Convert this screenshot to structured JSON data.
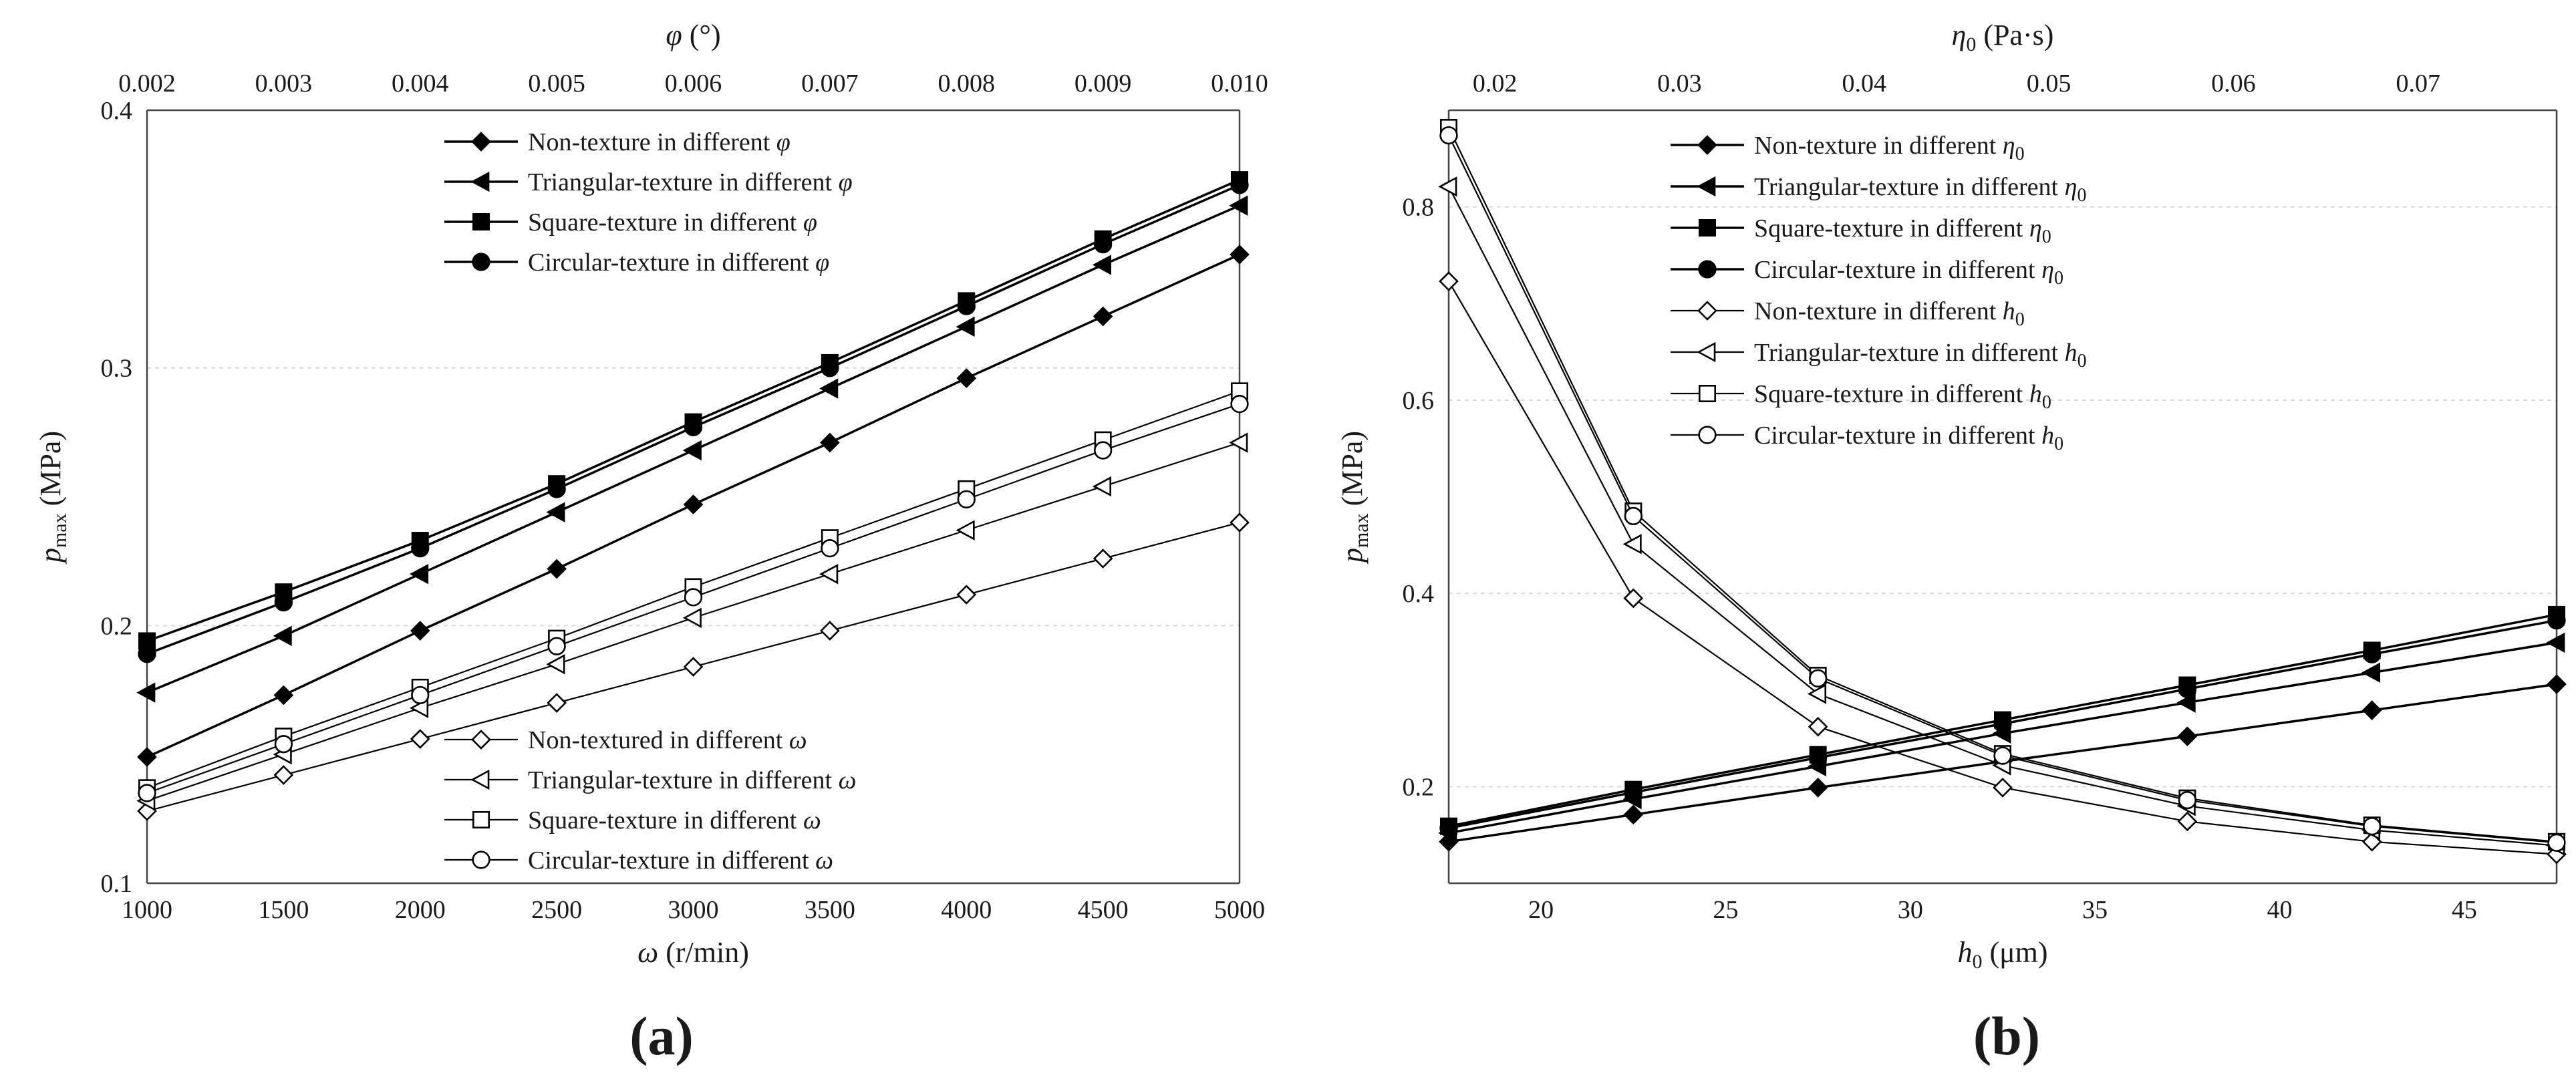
{
  "figure": {
    "panel_labels": [
      "(a)",
      "(b)"
    ]
  },
  "chart_data": [
    {
      "type": "line",
      "panel": "(a)",
      "x": [
        1000,
        1500,
        2000,
        2500,
        3000,
        3500,
        4000,
        4500,
        5000
      ],
      "xlim": [
        1000,
        5000
      ],
      "xticks": [
        "1000",
        "1500",
        "2000",
        "2500",
        "3000",
        "3500",
        "4000",
        "4500",
        "5000"
      ],
      "xlabel": {
        "sym": "ω",
        "sub": "",
        "unit": " (r/min)"
      },
      "x2": [
        0.002,
        0.003,
        0.004,
        0.005,
        0.006,
        0.007,
        0.008,
        0.009,
        0.01
      ],
      "x2lim": [
        0.002,
        0.01
      ],
      "x2ticks": [
        "0.002",
        "0.003",
        "0.004",
        "0.005",
        "0.006",
        "0.007",
        "0.008",
        "0.009",
        "0.010"
      ],
      "x2label": {
        "sym": "φ",
        "sub": "",
        "unit": " (°)"
      },
      "ylim": [
        0.1,
        0.4
      ],
      "yticks": [
        "0.1",
        "0.2",
        "0.3",
        "0.4"
      ],
      "yticks_values": [
        0.1,
        0.2,
        0.3,
        0.4
      ],
      "ylabel": {
        "sym": "p",
        "sub": "max",
        "unit": " (MPa)"
      },
      "grid": true,
      "series": [
        {
          "name": "Non-texture in different ",
          "var": "φ",
          "var_sub": "",
          "marker": "diamond",
          "filled": true,
          "axis": "x2",
          "values": [
            0.149,
            0.173,
            0.198,
            0.222,
            0.247,
            0.271,
            0.296,
            0.32,
            0.344
          ]
        },
        {
          "name": "Triangular-texture in different ",
          "var": "φ",
          "var_sub": "",
          "marker": "triangle-left",
          "filled": true,
          "axis": "x2",
          "values": [
            0.174,
            0.196,
            0.22,
            0.244,
            0.268,
            0.292,
            0.316,
            0.34,
            0.363
          ]
        },
        {
          "name": "Square-texture in different ",
          "var": "φ",
          "var_sub": "",
          "marker": "square",
          "filled": true,
          "axis": "x2",
          "values": [
            0.194,
            0.213,
            0.233,
            0.255,
            0.279,
            0.302,
            0.326,
            0.35,
            0.373
          ]
        },
        {
          "name": "Circular-texture in different ",
          "var": "φ",
          "var_sub": "",
          "marker": "circle",
          "filled": true,
          "axis": "x2",
          "values": [
            0.189,
            0.209,
            0.23,
            0.253,
            0.277,
            0.3,
            0.324,
            0.348,
            0.371
          ]
        },
        {
          "name": "Non-textured in different ",
          "var": "ω",
          "var_sub": "",
          "marker": "diamond",
          "filled": false,
          "axis": "x",
          "values": [
            0.128,
            0.142,
            0.156,
            0.17,
            0.184,
            0.198,
            0.212,
            0.226,
            0.24
          ]
        },
        {
          "name": "Triangular-texture in different ",
          "var": "ω",
          "var_sub": "",
          "marker": "triangle-left",
          "filled": false,
          "axis": "x",
          "values": [
            0.132,
            0.15,
            0.168,
            0.185,
            0.203,
            0.22,
            0.237,
            0.254,
            0.271
          ]
        },
        {
          "name": "Square-texture in different ",
          "var": "ω",
          "var_sub": "",
          "marker": "square",
          "filled": false,
          "axis": "x",
          "values": [
            0.137,
            0.157,
            0.176,
            0.195,
            0.215,
            0.234,
            0.253,
            0.272,
            0.291
          ]
        },
        {
          "name": "Circular-texture in different ",
          "var": "ω",
          "var_sub": "",
          "marker": "circle",
          "filled": false,
          "axis": "x",
          "values": [
            0.135,
            0.154,
            0.173,
            0.192,
            0.211,
            0.23,
            0.249,
            0.268,
            0.286
          ]
        }
      ],
      "legend_groups": [
        {
          "placement": "top-center",
          "series": [
            0,
            1,
            2,
            3
          ]
        },
        {
          "placement": "bottom-center",
          "series": [
            4,
            5,
            6,
            7
          ]
        }
      ]
    },
    {
      "type": "line",
      "panel": "(b)",
      "x": [
        17.5,
        22.5,
        27.5,
        32.5,
        37.5,
        42.5,
        47.5
      ],
      "xlim": [
        17.5,
        47.5
      ],
      "xticks": [
        "20",
        "25",
        "30",
        "35",
        "40",
        "45"
      ],
      "xticks_values": [
        20,
        25,
        30,
        35,
        40,
        45
      ],
      "xlabel": {
        "sym": "h",
        "sub": "0",
        "unit": " (μm)"
      },
      "x2": [
        0.0175,
        0.0275,
        0.0375,
        0.0475,
        0.0575,
        0.0675,
        0.0775
      ],
      "x2lim": [
        0.0175,
        0.0775
      ],
      "x2ticks": [
        "0.02",
        "0.03",
        "0.04",
        "0.05",
        "0.06",
        "0.07"
      ],
      "x2ticks_values": [
        0.02,
        0.03,
        0.04,
        0.05,
        0.06,
        0.07
      ],
      "x2label": {
        "sym": "η",
        "sub": "0",
        "unit": " (Pa·s)"
      },
      "ylim": [
        0.1,
        0.9
      ],
      "yticks": [
        "0.2",
        "0.4",
        "0.6",
        "0.8"
      ],
      "yticks_values": [
        0.2,
        0.4,
        0.6,
        0.8
      ],
      "ylabel": {
        "sym": "p",
        "sub": "max",
        "unit": " (MPa)"
      },
      "grid": true,
      "series": [
        {
          "name": "Non-texture in different ",
          "var": "η",
          "var_sub": "0",
          "marker": "diamond",
          "filled": true,
          "axis": "x2",
          "values": [
            0.143,
            0.171,
            0.199,
            0.226,
            0.252,
            0.279,
            0.306
          ]
        },
        {
          "name": "Triangular-texture in different ",
          "var": "η",
          "var_sub": "0",
          "marker": "triangle-left",
          "filled": true,
          "axis": "x2",
          "values": [
            0.152,
            0.187,
            0.221,
            0.255,
            0.287,
            0.318,
            0.349
          ]
        },
        {
          "name": "Square-texture in different ",
          "var": "η",
          "var_sub": "0",
          "marker": "square",
          "filled": true,
          "axis": "x2",
          "values": [
            0.159,
            0.197,
            0.233,
            0.269,
            0.305,
            0.341,
            0.378
          ]
        },
        {
          "name": "Circular-texture in different ",
          "var": "η",
          "var_sub": "0",
          "marker": "circle",
          "filled": true,
          "axis": "x2",
          "values": [
            0.157,
            0.194,
            0.23,
            0.265,
            0.301,
            0.337,
            0.372
          ]
        },
        {
          "name": "Non-texture in different ",
          "var": "h",
          "var_sub": "0",
          "marker": "diamond",
          "filled": false,
          "axis": "x",
          "values": [
            0.723,
            0.395,
            0.262,
            0.199,
            0.164,
            0.143,
            0.13
          ]
        },
        {
          "name": "Triangular-texture in different ",
          "var": "h",
          "var_sub": "0",
          "marker": "triangle-left",
          "filled": false,
          "axis": "x",
          "values": [
            0.821,
            0.451,
            0.296,
            0.222,
            0.18,
            0.155,
            0.139
          ]
        },
        {
          "name": "Square-texture in different ",
          "var": "h",
          "var_sub": "0",
          "marker": "square",
          "filled": false,
          "axis": "x",
          "values": [
            0.882,
            0.485,
            0.315,
            0.234,
            0.188,
            0.16,
            0.143
          ]
        },
        {
          "name": "Circular-texture in different ",
          "var": "h",
          "var_sub": "0",
          "marker": "circle",
          "filled": false,
          "axis": "x",
          "values": [
            0.874,
            0.48,
            0.312,
            0.232,
            0.186,
            0.159,
            0.142
          ]
        }
      ],
      "legend_groups": [
        {
          "placement": "top-center",
          "series": [
            0,
            1,
            2,
            3,
            4,
            5,
            6,
            7
          ]
        }
      ]
    }
  ]
}
